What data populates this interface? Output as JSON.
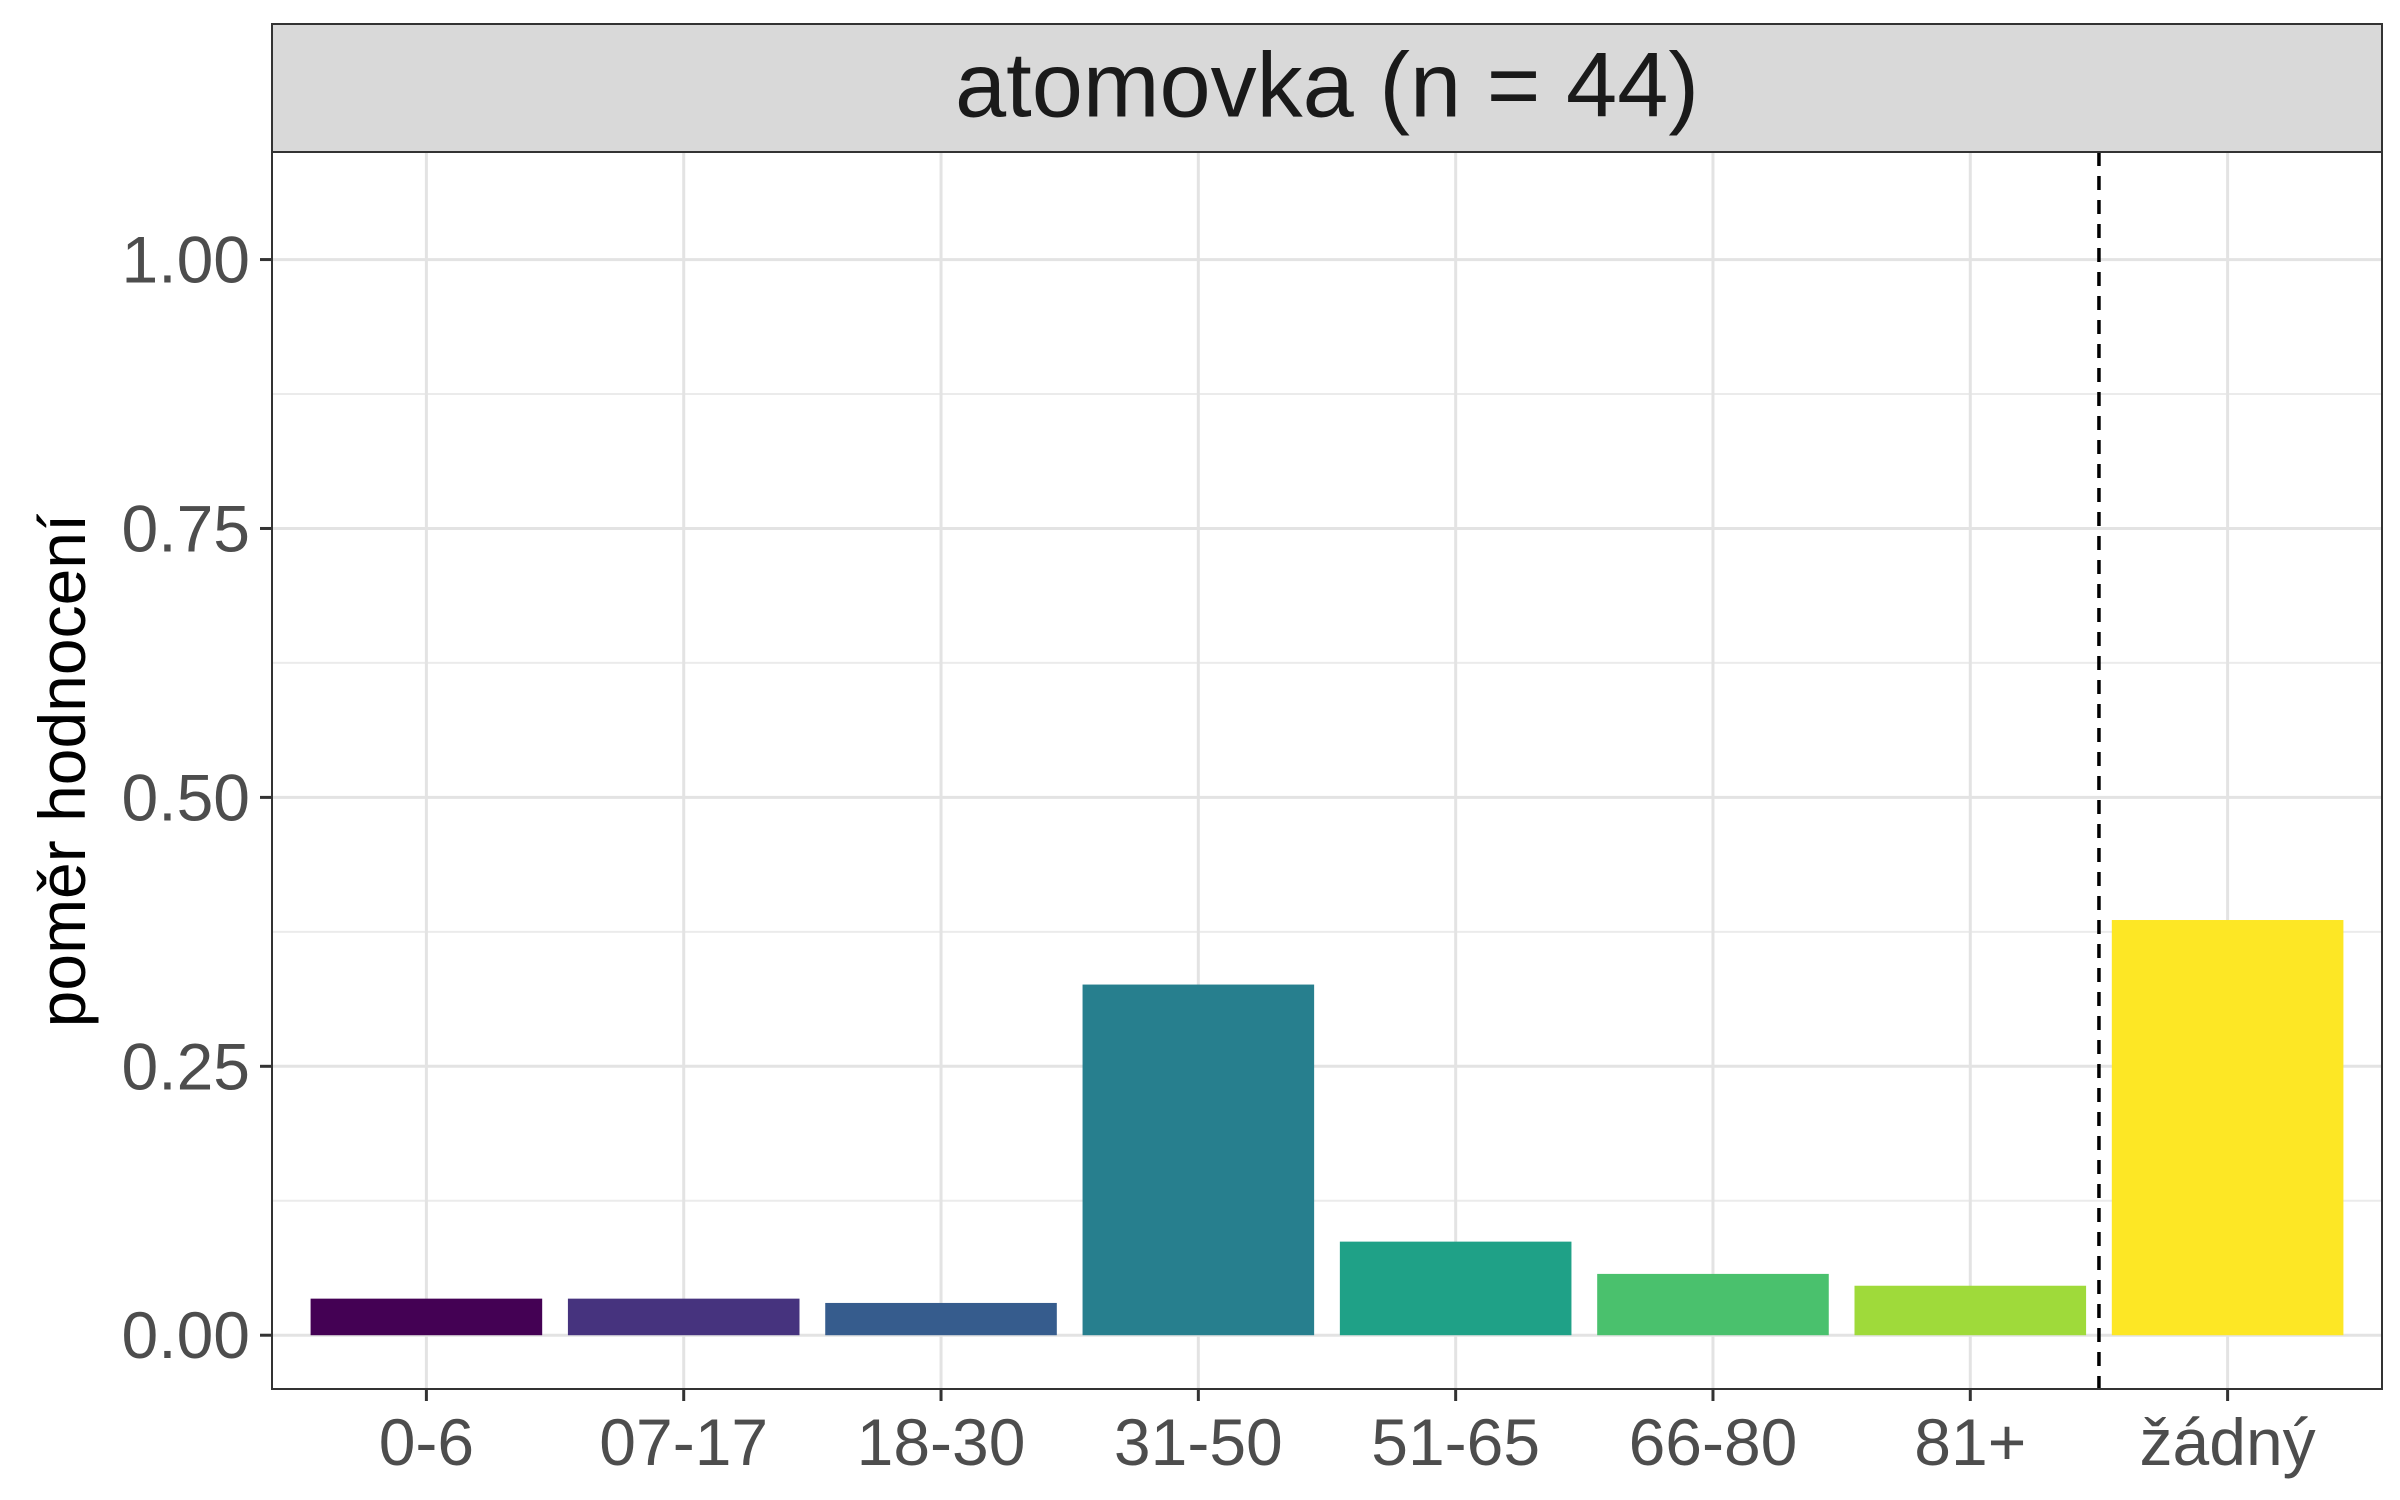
{
  "chart_data": {
    "type": "bar",
    "panel_title": "atomovka (n = 44)",
    "xlabel": "",
    "ylabel": "poměr hodnocení",
    "ylim": [
      -0.05,
      1.1
    ],
    "y_ticks": [
      0.0,
      0.25,
      0.5,
      0.75,
      1.0
    ],
    "y_tick_labels": [
      "0.00",
      "0.25",
      "0.50",
      "0.75",
      "1.00"
    ],
    "categories": [
      "0-6",
      "07-17",
      "18-30",
      "31-50",
      "51-65",
      "66-80",
      "81+",
      "žádný"
    ],
    "values": [
      0.034,
      0.034,
      0.03,
      0.326,
      0.087,
      0.057,
      0.046,
      0.386
    ],
    "colors": [
      "#440154",
      "#46337E",
      "#365C8D",
      "#277F8E",
      "#1FA187",
      "#4AC16D",
      "#9FDA3A",
      "#FDE725"
    ],
    "separator_after_category": "81+",
    "separator_style": "dashed",
    "grid": true,
    "legend": "none"
  }
}
